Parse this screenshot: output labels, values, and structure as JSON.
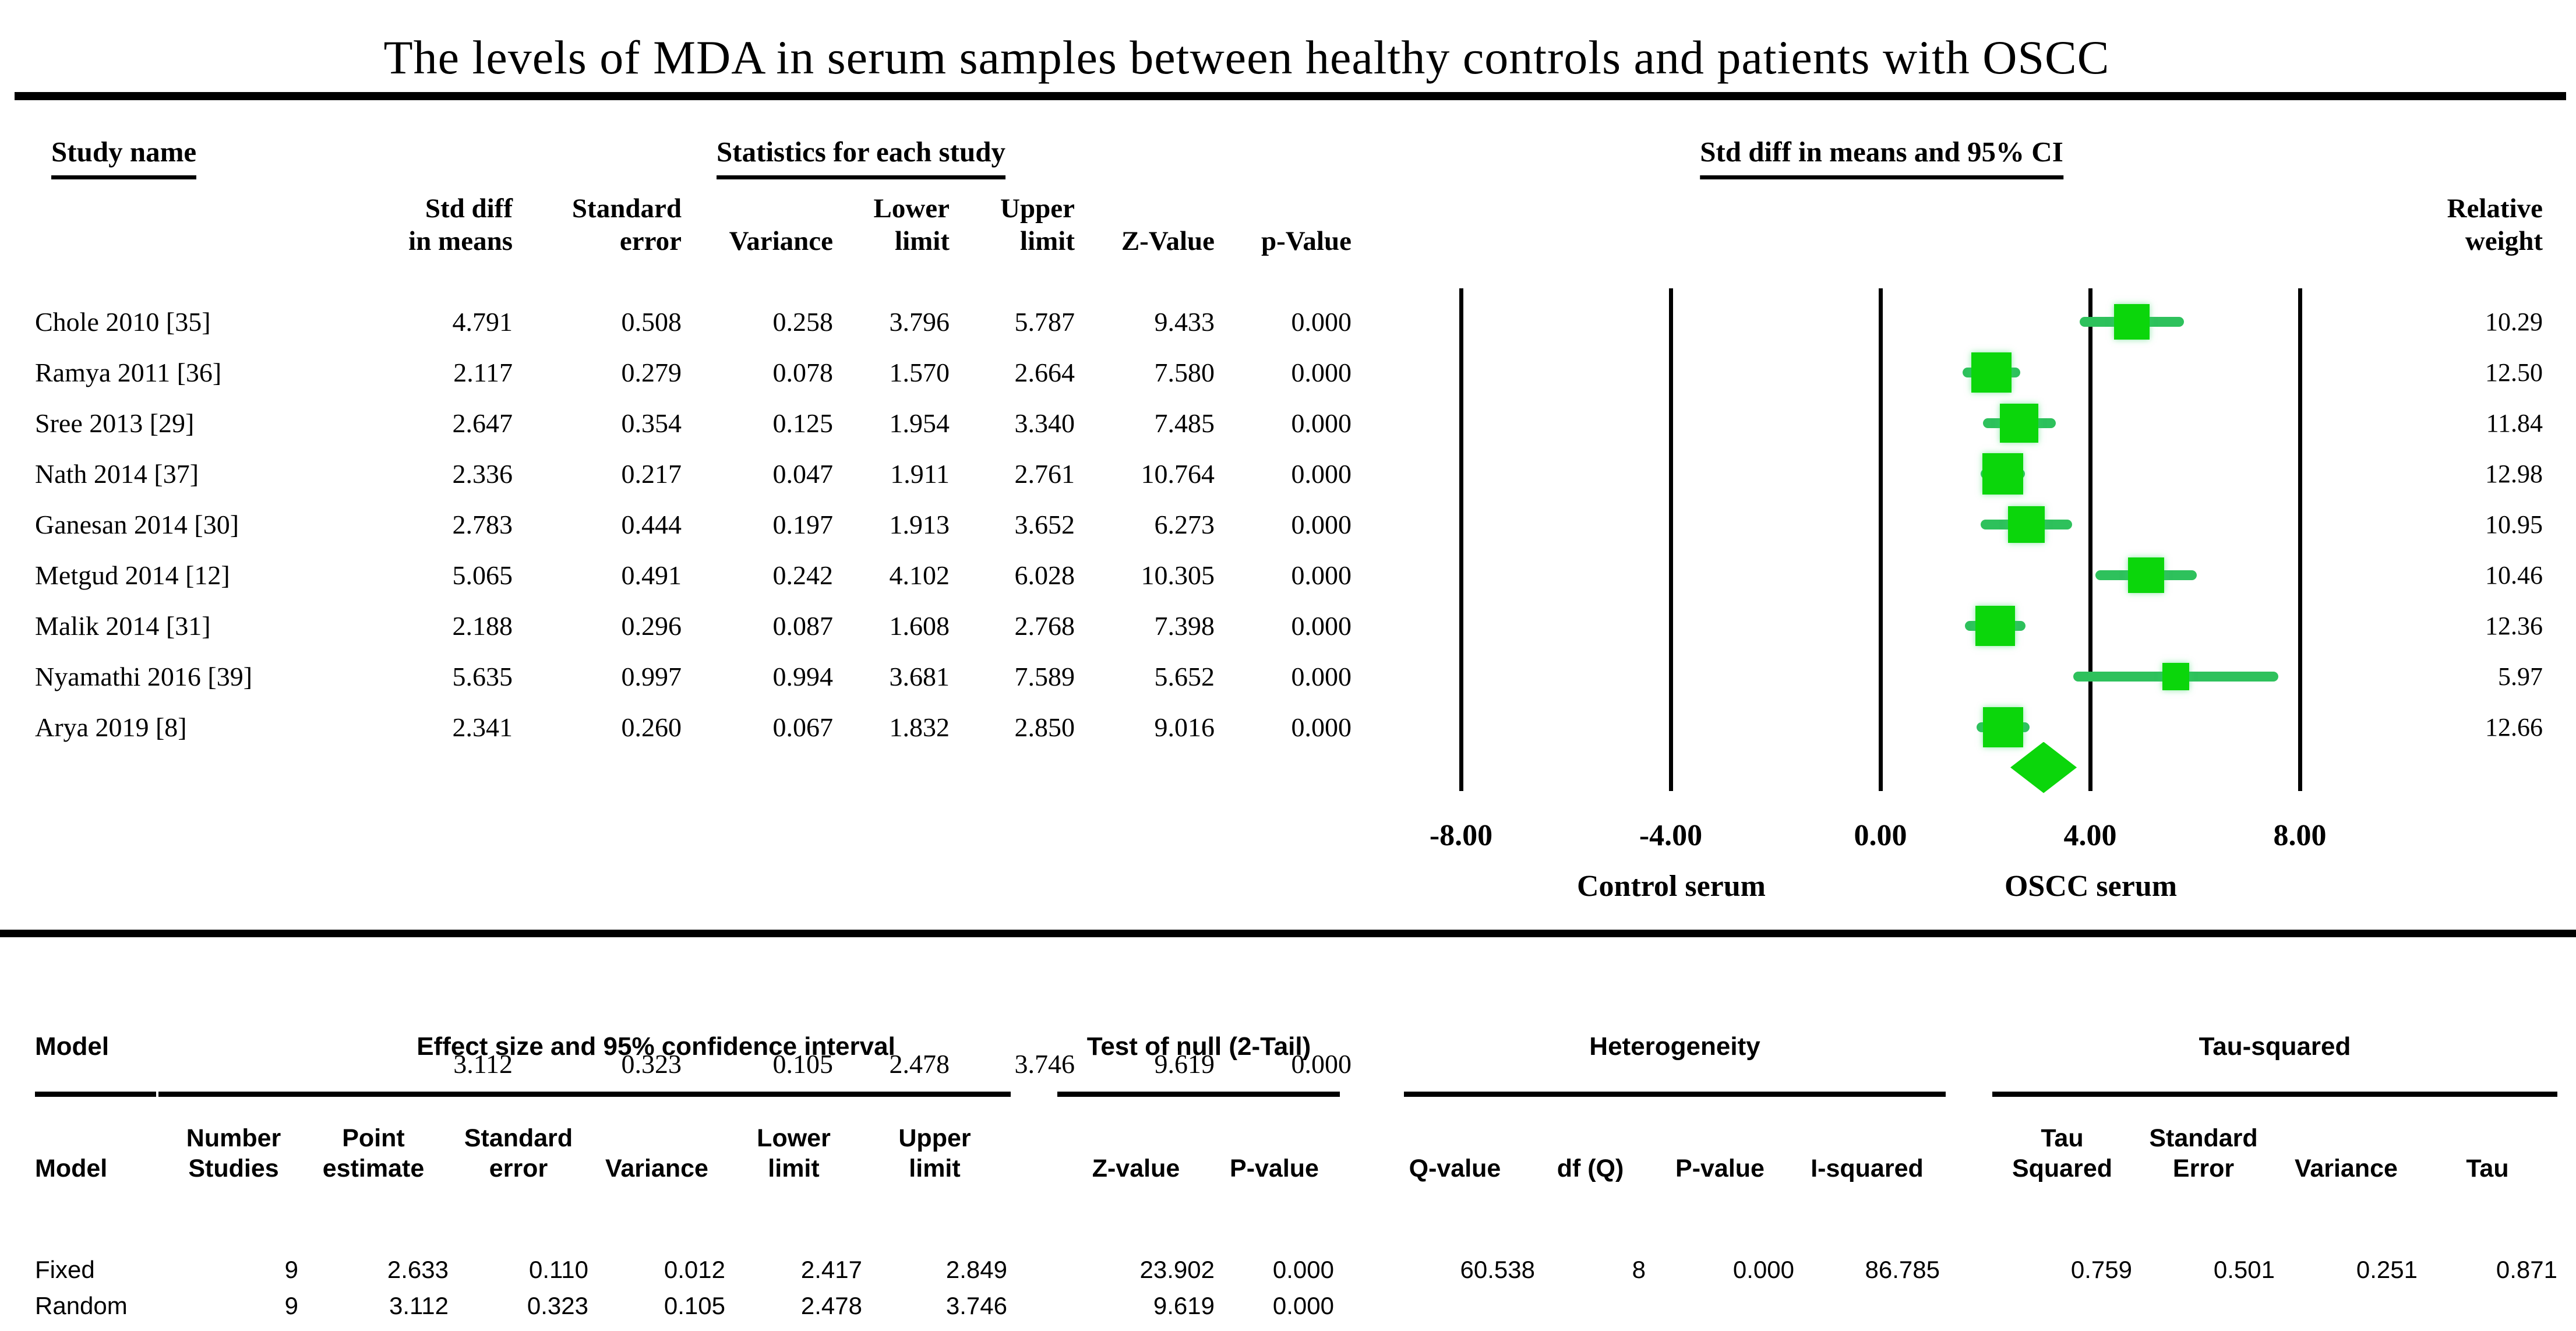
{
  "title": "The levels of MDA in serum samples between healthy controls and patients with OSCC",
  "colors": {
    "marker_green": "#0bd60b",
    "ci_green": "#2ec15c",
    "text": "#000000",
    "background": "#ffffff",
    "line_black": "#000000"
  },
  "forest": {
    "group_headers": {
      "study": "Study name",
      "stats": "Statistics for each study",
      "plot": "Std diff in means and 95% CI"
    },
    "stat_headers": [
      "Std diff\nin means",
      "Standard\nerror",
      "Variance",
      "Lower\nlimit",
      "Upper\nlimit",
      "Z-Value",
      "p-Value"
    ],
    "weight_header": "Relative\nweight",
    "studies": [
      {
        "name": "Chole 2010 [35]",
        "std_diff": "4.791",
        "se": "0.508",
        "variance": "0.258",
        "lower": "3.796",
        "upper": "5.787",
        "z": "9.433",
        "p": "0.000",
        "weight": "10.29"
      },
      {
        "name": "Ramya 2011 [36]",
        "std_diff": "2.117",
        "se": "0.279",
        "variance": "0.078",
        "lower": "1.570",
        "upper": "2.664",
        "z": "7.580",
        "p": "0.000",
        "weight": "12.50"
      },
      {
        "name": "Sree 2013 [29]",
        "std_diff": "2.647",
        "se": "0.354",
        "variance": "0.125",
        "lower": "1.954",
        "upper": "3.340",
        "z": "7.485",
        "p": "0.000",
        "weight": "11.84"
      },
      {
        "name": "Nath 2014 [37]",
        "std_diff": "2.336",
        "se": "0.217",
        "variance": "0.047",
        "lower": "1.911",
        "upper": "2.761",
        "z": "10.764",
        "p": "0.000",
        "weight": "12.98"
      },
      {
        "name": "Ganesan 2014 [30]",
        "std_diff": "2.783",
        "se": "0.444",
        "variance": "0.197",
        "lower": "1.913",
        "upper": "3.652",
        "z": "6.273",
        "p": "0.000",
        "weight": "10.95"
      },
      {
        "name": "Metgud 2014 [12]",
        "std_diff": "5.065",
        "se": "0.491",
        "variance": "0.242",
        "lower": "4.102",
        "upper": "6.028",
        "z": "10.305",
        "p": "0.000",
        "weight": "10.46"
      },
      {
        "name": "Malik 2014 [31]",
        "std_diff": "2.188",
        "se": "0.296",
        "variance": "0.087",
        "lower": "1.608",
        "upper": "2.768",
        "z": "7.398",
        "p": "0.000",
        "weight": "12.36"
      },
      {
        "name": "Nyamathi 2016 [39]",
        "std_diff": "5.635",
        "se": "0.997",
        "variance": "0.994",
        "lower": "3.681",
        "upper": "7.589",
        "z": "5.652",
        "p": "0.000",
        "weight": "5.97"
      },
      {
        "name": "Arya 2019 [8]",
        "std_diff": "2.341",
        "se": "0.260",
        "variance": "0.067",
        "lower": "1.832",
        "upper": "2.850",
        "z": "9.016",
        "p": "0.000",
        "weight": "12.66"
      }
    ],
    "summary": {
      "name": "",
      "std_diff": "3.112",
      "se": "0.323",
      "variance": "0.105",
      "lower": "2.478",
      "upper": "3.746",
      "z": "9.619",
      "p": "0.000",
      "weight": ""
    },
    "axis": {
      "tick_values": [
        -8,
        -4,
        0,
        4,
        8
      ],
      "tick_labels": [
        "-8.00",
        "-4.00",
        "0.00",
        "4.00",
        "8.00"
      ],
      "left_label": "Control serum",
      "right_label": "OSCC serum"
    }
  },
  "model_table": {
    "group_headers": {
      "model": "Model",
      "effect": "Effect size and 95% confidence interval",
      "null_test": "Test of null (2-Tail)",
      "heterogeneity": "Heterogeneity",
      "tau": "Tau-squared"
    },
    "sub_headers": [
      "Model",
      "Number\nStudies",
      "Point\nestimate",
      "Standard\nerror",
      "Variance",
      "Lower\nlimit",
      "Upper\nlimit",
      "",
      "Z-value",
      "P-value",
      "",
      "Q-value",
      "df (Q)",
      "P-value",
      "I-squared",
      "",
      "Tau\nSquared",
      "Standard\nError",
      "Variance",
      "Tau"
    ],
    "rows": [
      [
        "Fixed",
        "9",
        "2.633",
        "0.110",
        "0.012",
        "2.417",
        "2.849",
        "",
        "23.902",
        "0.000",
        "",
        "60.538",
        "8",
        "0.000",
        "86.785",
        "",
        "0.759",
        "0.501",
        "0.251",
        "0.871"
      ],
      [
        "Random",
        "9",
        "3.112",
        "0.323",
        "0.105",
        "2.478",
        "3.746",
        "",
        "9.619",
        "0.000",
        "",
        "",
        "",
        "",
        "",
        "",
        "",
        "",
        "",
        ""
      ]
    ]
  },
  "chart_data": {
    "type": "scatter",
    "subtype": "forest-plot",
    "title": "The levels of MDA in serum samples between healthy controls and patients with OSCC",
    "xlabel": "Std diff in means",
    "x_axis": {
      "min": -8,
      "max": 8,
      "ticks": [
        -8,
        -4,
        0,
        4,
        8
      ],
      "tick_labels": [
        "-8.00",
        "-4.00",
        "0.00",
        "4.00",
        "8.00"
      ],
      "left_direction_label": "Control serum",
      "right_direction_label": "OSCC serum",
      "grid": "vertical-lines-at-ticks"
    },
    "series": [
      {
        "name": "Chole 2010 [35]",
        "point": 4.791,
        "lower": 3.796,
        "upper": 5.787,
        "weight_pct": 10.29
      },
      {
        "name": "Ramya 2011 [36]",
        "point": 2.117,
        "lower": 1.57,
        "upper": 2.664,
        "weight_pct": 12.5
      },
      {
        "name": "Sree 2013 [29]",
        "point": 2.647,
        "lower": 1.954,
        "upper": 3.34,
        "weight_pct": 11.84
      },
      {
        "name": "Nath 2014 [37]",
        "point": 2.336,
        "lower": 1.911,
        "upper": 2.761,
        "weight_pct": 12.98
      },
      {
        "name": "Ganesan 2014 [30]",
        "point": 2.783,
        "lower": 1.913,
        "upper": 3.652,
        "weight_pct": 10.95
      },
      {
        "name": "Metgud 2014 [12]",
        "point": 5.065,
        "lower": 4.102,
        "upper": 6.028,
        "weight_pct": 10.46
      },
      {
        "name": "Malik 2014 [31]",
        "point": 2.188,
        "lower": 1.608,
        "upper": 2.768,
        "weight_pct": 12.36
      },
      {
        "name": "Nyamathi 2016 [39]",
        "point": 5.635,
        "lower": 3.681,
        "upper": 7.589,
        "weight_pct": 5.97
      },
      {
        "name": "Arya 2019 [8]",
        "point": 2.341,
        "lower": 1.832,
        "upper": 2.85,
        "weight_pct": 12.66
      }
    ],
    "summary_diamond": {
      "point": 3.112,
      "lower": 2.478,
      "upper": 3.746
    },
    "legend_position": "none"
  }
}
